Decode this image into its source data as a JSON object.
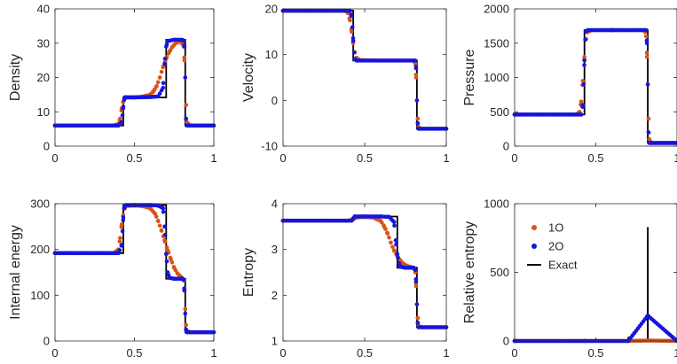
{
  "colors": {
    "o1": "#d95319",
    "o2": "#1515e0",
    "exact": "#000000",
    "axis": "#262626"
  },
  "legend": [
    {
      "key": "o1",
      "label": "1O"
    },
    {
      "key": "o2",
      "label": "2O"
    },
    {
      "key": "exact",
      "label": "Exact"
    }
  ],
  "chart_data": [
    {
      "type": "scatter",
      "name": "density",
      "ylabel": "Density",
      "xlim": [
        0,
        1
      ],
      "ylim": [
        0,
        40
      ],
      "xticks": [
        0,
        0.5,
        1
      ],
      "xtick_labels": [
        "0",
        "0.5",
        "1"
      ],
      "yticks": [
        0,
        10,
        20,
        30,
        40
      ],
      "ytick_labels": [
        "0",
        "10",
        "20",
        "30",
        "40"
      ],
      "series": [
        {
          "name": "Exact",
          "type": "line",
          "x": [
            0,
            0.43,
            0.43,
            0.7,
            0.7,
            0.82,
            0.82,
            1
          ],
          "y": [
            6,
            6,
            14.2,
            14.2,
            31,
            31,
            6,
            6
          ]
        },
        {
          "name": "1O",
          "type": "scatter",
          "x": [
            0,
            0.37,
            0.4,
            0.41,
            0.42,
            0.43,
            0.44,
            0.45,
            0.5,
            0.55,
            0.6,
            0.62,
            0.64,
            0.66,
            0.68,
            0.7,
            0.72,
            0.74,
            0.76,
            0.78,
            0.8,
            0.81,
            0.815,
            0.82,
            0.825,
            0.83,
            0.85,
            1
          ],
          "y": [
            6,
            6,
            6.5,
            8,
            11,
            13,
            14,
            14.2,
            14.2,
            14.4,
            15,
            16,
            17.5,
            20,
            23,
            25.5,
            27.5,
            29,
            30,
            30.5,
            30,
            29,
            25,
            20,
            12,
            7,
            6,
            6
          ]
        },
        {
          "name": "2O",
          "type": "scatter",
          "x": [
            0,
            0.4,
            0.42,
            0.425,
            0.43,
            0.435,
            0.44,
            0.45,
            0.5,
            0.6,
            0.65,
            0.68,
            0.69,
            0.7,
            0.71,
            0.75,
            0.8,
            0.81,
            0.815,
            0.82,
            0.825,
            0.83,
            1
          ],
          "y": [
            6,
            6,
            7,
            9,
            11.5,
            13.5,
            14.2,
            14.2,
            14.2,
            14.3,
            14.5,
            17,
            24,
            29,
            30.6,
            31,
            31,
            30.7,
            29,
            20,
            8,
            6,
            6
          ]
        }
      ]
    },
    {
      "type": "scatter",
      "name": "velocity",
      "ylabel": "Velocity",
      "xlim": [
        0,
        1
      ],
      "ylim": [
        -10,
        20
      ],
      "xticks": [
        0,
        0.5,
        1
      ],
      "xtick_labels": [
        "0",
        "0.5",
        "1"
      ],
      "yticks": [
        -10,
        0,
        10,
        20
      ],
      "ytick_labels": [
        "-10",
        "0",
        "10",
        "20"
      ],
      "series": [
        {
          "name": "Exact",
          "type": "line",
          "x": [
            0,
            0.43,
            0.43,
            0.82,
            0.82,
            1
          ],
          "y": [
            19.6,
            19.6,
            8.7,
            8.7,
            -6.2,
            -6.2
          ]
        },
        {
          "name": "1O",
          "type": "scatter",
          "x": [
            0,
            0.38,
            0.4,
            0.41,
            0.42,
            0.43,
            0.44,
            0.45,
            0.47,
            0.6,
            0.8,
            0.81,
            0.815,
            0.82,
            0.825,
            0.83,
            0.84,
            1
          ],
          "y": [
            19.6,
            19.6,
            19,
            17.5,
            15,
            12.5,
            10.5,
            9.3,
            8.8,
            8.7,
            8.7,
            8,
            5,
            0,
            -4,
            -5.8,
            -6.2,
            -6.2
          ]
        },
        {
          "name": "2O",
          "type": "scatter",
          "x": [
            0,
            0.41,
            0.42,
            0.425,
            0.43,
            0.435,
            0.44,
            0.45,
            0.6,
            0.81,
            0.815,
            0.82,
            0.825,
            0.83,
            1
          ],
          "y": [
            19.6,
            19.6,
            18.5,
            16,
            13,
            10.5,
            9,
            8.7,
            8.7,
            8.7,
            7,
            0,
            -5,
            -6.2,
            -6.2
          ]
        }
      ]
    },
    {
      "type": "scatter",
      "name": "pressure",
      "ylabel": "Pressure",
      "xlim": [
        0,
        1
      ],
      "ylim": [
        0,
        2000
      ],
      "xticks": [
        0,
        0.5,
        1
      ],
      "xtick_labels": [
        "0",
        "0.5",
        "1"
      ],
      "yticks": [
        0,
        500,
        1000,
        1500,
        2000
      ],
      "ytick_labels": [
        "0",
        "500",
        "1000",
        "1500",
        "2000"
      ],
      "series": [
        {
          "name": "Exact",
          "type": "line",
          "x": [
            0,
            0.43,
            0.43,
            0.82,
            0.82,
            1
          ],
          "y": [
            460,
            460,
            1690,
            1690,
            46,
            46
          ]
        },
        {
          "name": "1O",
          "type": "scatter",
          "x": [
            0,
            0.38,
            0.4,
            0.41,
            0.42,
            0.43,
            0.44,
            0.45,
            0.47,
            0.6,
            0.8,
            0.81,
            0.815,
            0.82,
            0.825,
            0.83,
            0.84,
            1
          ],
          "y": [
            460,
            460,
            500,
            650,
            950,
            1300,
            1560,
            1660,
            1690,
            1690,
            1690,
            1600,
            1300,
            900,
            400,
            100,
            46,
            46
          ]
        },
        {
          "name": "2O",
          "type": "scatter",
          "x": [
            0,
            0.41,
            0.42,
            0.425,
            0.43,
            0.435,
            0.44,
            0.45,
            0.6,
            0.81,
            0.815,
            0.82,
            0.825,
            0.83,
            1
          ],
          "y": [
            460,
            460,
            600,
            900,
            1250,
            1550,
            1670,
            1690,
            1690,
            1690,
            1500,
            900,
            200,
            46,
            46
          ]
        }
      ]
    },
    {
      "type": "scatter",
      "name": "internal-energy",
      "ylabel": "Internal energy",
      "xlim": [
        0,
        1
      ],
      "ylim": [
        0,
        300
      ],
      "xticks": [
        0,
        0.5,
        1
      ],
      "xtick_labels": [
        "0",
        "0.5",
        "1"
      ],
      "yticks": [
        0,
        100,
        200,
        300
      ],
      "ytick_labels": [
        "0",
        "100",
        "200",
        "300"
      ],
      "series": [
        {
          "name": "Exact",
          "type": "line",
          "x": [
            0,
            0.43,
            0.43,
            0.7,
            0.7,
            0.82,
            0.82,
            1
          ],
          "y": [
            192,
            192,
            297,
            297,
            136,
            136,
            19,
            19
          ]
        },
        {
          "name": "1O",
          "type": "scatter",
          "x": [
            0,
            0.37,
            0.4,
            0.41,
            0.42,
            0.43,
            0.44,
            0.45,
            0.5,
            0.55,
            0.6,
            0.63,
            0.65,
            0.67,
            0.69,
            0.71,
            0.73,
            0.75,
            0.77,
            0.79,
            0.8,
            0.81,
            0.815,
            0.82,
            0.825,
            0.83,
            0.85,
            1
          ],
          "y": [
            192,
            192,
            200,
            225,
            255,
            275,
            290,
            295,
            296,
            295,
            290,
            278,
            262,
            242,
            220,
            198,
            178,
            160,
            148,
            141,
            138,
            132,
            110,
            70,
            35,
            22,
            19,
            19
          ]
        },
        {
          "name": "2O",
          "type": "scatter",
          "x": [
            0,
            0.4,
            0.42,
            0.425,
            0.43,
            0.435,
            0.44,
            0.45,
            0.5,
            0.6,
            0.65,
            0.68,
            0.69,
            0.7,
            0.71,
            0.72,
            0.75,
            0.8,
            0.81,
            0.815,
            0.82,
            0.825,
            0.83,
            1
          ],
          "y": [
            192,
            192,
            210,
            240,
            270,
            290,
            296,
            297,
            297,
            297,
            296,
            290,
            250,
            190,
            150,
            138,
            136,
            136,
            134,
            110,
            60,
            25,
            19,
            19
          ]
        }
      ]
    },
    {
      "type": "scatter",
      "name": "entropy",
      "ylabel": "Entropy",
      "xlim": [
        0,
        1
      ],
      "ylim": [
        1,
        4
      ],
      "xticks": [
        0,
        0.5,
        1
      ],
      "xtick_labels": [
        "0",
        "0.5",
        "1"
      ],
      "yticks": [
        1,
        2,
        3,
        4
      ],
      "ytick_labels": [
        "1",
        "2",
        "3",
        "4"
      ],
      "series": [
        {
          "name": "Exact",
          "type": "line",
          "x": [
            0,
            0.43,
            0.43,
            0.7,
            0.7,
            0.82,
            0.82,
            1
          ],
          "y": [
            3.63,
            3.63,
            3.72,
            3.72,
            2.6,
            2.6,
            1.3,
            1.3
          ]
        },
        {
          "name": "1O",
          "type": "scatter",
          "x": [
            0,
            0.4,
            0.43,
            0.45,
            0.5,
            0.55,
            0.6,
            0.62,
            0.64,
            0.66,
            0.68,
            0.7,
            0.72,
            0.74,
            0.76,
            0.78,
            0.8,
            0.81,
            0.815,
            0.82,
            0.825,
            0.83,
            0.85,
            1
          ],
          "y": [
            3.63,
            3.63,
            3.66,
            3.7,
            3.71,
            3.7,
            3.62,
            3.5,
            3.35,
            3.15,
            2.98,
            2.85,
            2.75,
            2.68,
            2.64,
            2.62,
            2.6,
            2.5,
            2.2,
            1.8,
            1.5,
            1.33,
            1.3,
            1.3
          ]
        },
        {
          "name": "2O",
          "type": "scatter",
          "x": [
            0,
            0.42,
            0.43,
            0.44,
            0.5,
            0.6,
            0.65,
            0.68,
            0.69,
            0.7,
            0.71,
            0.72,
            0.75,
            0.8,
            0.81,
            0.815,
            0.82,
            0.825,
            0.83,
            1
          ],
          "y": [
            3.63,
            3.63,
            3.68,
            3.72,
            3.72,
            3.72,
            3.71,
            3.6,
            3.2,
            2.9,
            2.7,
            2.62,
            2.6,
            2.6,
            2.55,
            2.3,
            1.8,
            1.4,
            1.3,
            1.3
          ]
        }
      ]
    },
    {
      "type": "scatter",
      "name": "relative-entropy",
      "ylabel": "Relative entropy",
      "xlim": [
        0,
        1
      ],
      "ylim": [
        0,
        1000
      ],
      "xticks": [
        0,
        0.5,
        1
      ],
      "xtick_labels": [
        "0",
        "0.5",
        "1"
      ],
      "yticks": [
        0,
        500,
        1000
      ],
      "ytick_labels": [
        "0",
        "500",
        "1000"
      ],
      "series": [
        {
          "name": "Exact",
          "type": "line",
          "x": [
            0,
            0.429,
            0.43,
            0.431,
            0.699,
            0.7,
            0.701,
            0.819,
            0.82,
            0.821,
            1
          ],
          "y": [
            0,
            0,
            12,
            0,
            0,
            30,
            0,
            0,
            830,
            0,
            0
          ]
        },
        {
          "name": "1O",
          "type": "scatter",
          "x": [
            0,
            0.43,
            0.7,
            0.82,
            1
          ],
          "y": [
            0,
            0,
            0,
            3,
            0
          ]
        },
        {
          "name": "2O",
          "type": "scatter",
          "x": [
            0,
            0.43,
            0.7,
            0.82,
            1
          ],
          "y": [
            0,
            0,
            0,
            185,
            0
          ]
        }
      ]
    }
  ]
}
